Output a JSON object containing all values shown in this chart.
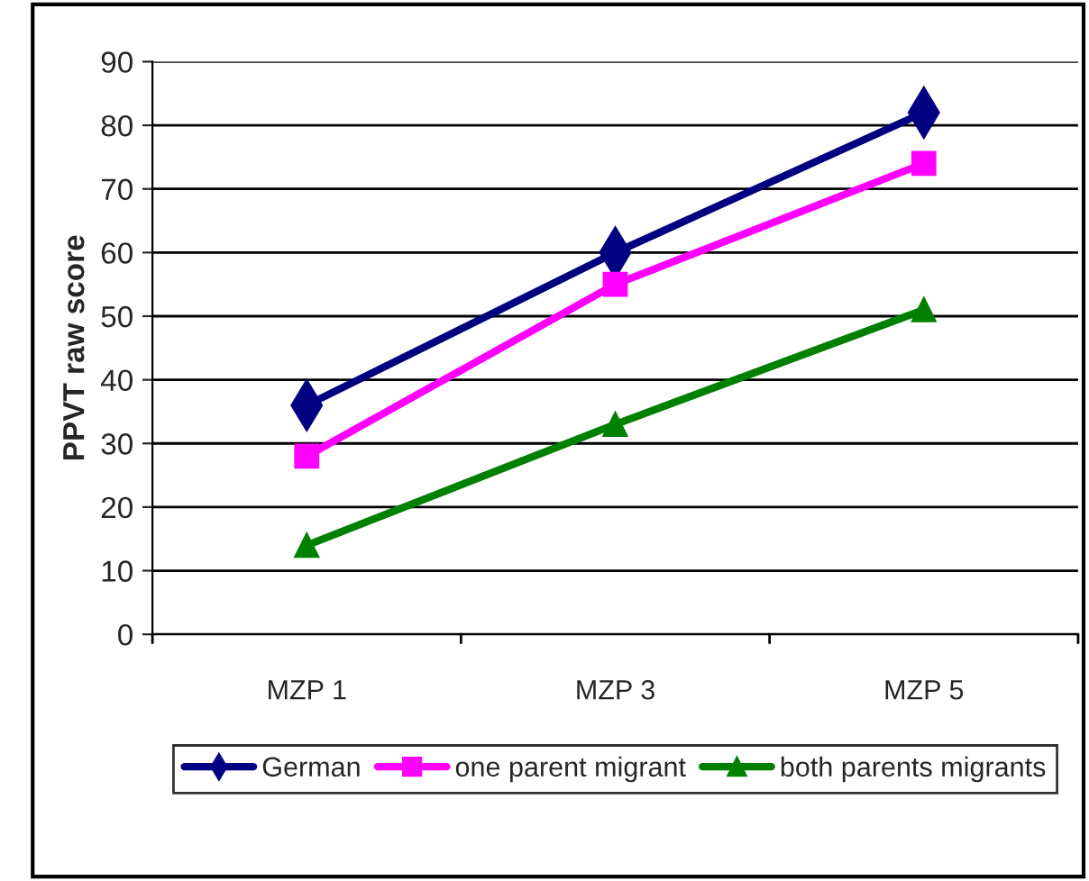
{
  "chart_data": {
    "type": "line",
    "ylabel": "PPVT raw score",
    "categories": [
      "MZP 1",
      "MZP 3",
      "MZP 5"
    ],
    "series": [
      {
        "name": "German",
        "color": "#000080",
        "marker": "diamond",
        "values": [
          36,
          60,
          82
        ]
      },
      {
        "name": "one parent migrant",
        "color": "#ff00ff",
        "marker": "square",
        "values": [
          28,
          55,
          74
        ]
      },
      {
        "name": "both parents migrants",
        "color": "#008000",
        "marker": "triangle",
        "values": [
          14,
          33,
          51
        ]
      }
    ],
    "ylim": [
      0,
      90
    ],
    "yticks": [
      0,
      10,
      20,
      30,
      40,
      50,
      60,
      70,
      80,
      90
    ],
    "grid": "y",
    "legend": "bottom"
  }
}
